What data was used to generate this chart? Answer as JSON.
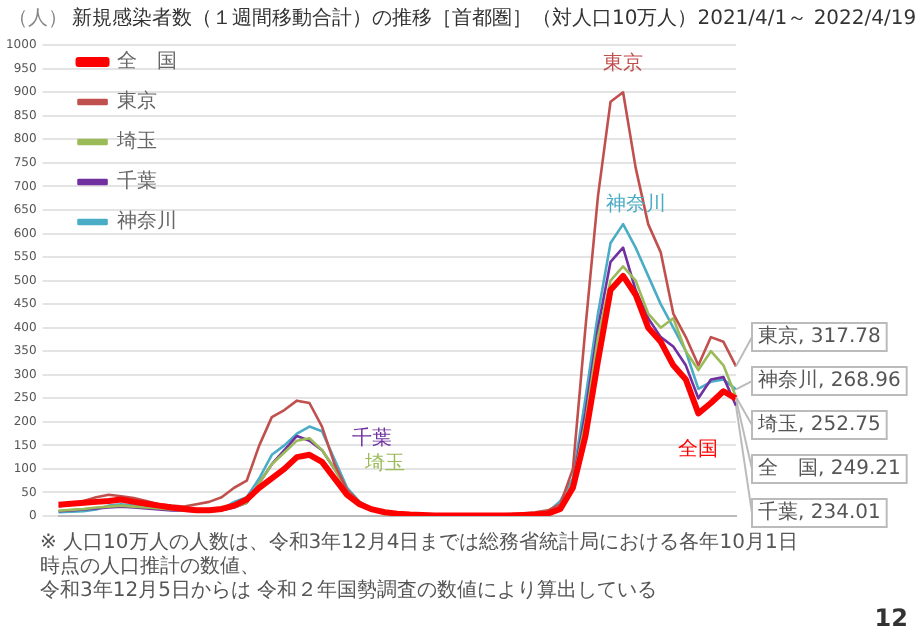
{
  "chart_data": {
    "type": "line",
    "title": "新規感染者数（１週間移動合計）の推移［首都圏］（対人口10万人）2021/4/1～ 2022/4/19",
    "ylabel": "（人）",
    "categories": [
      null,
      null,
      null,
      null,
      null,
      null,
      null,
      null,
      null,
      null,
      null,
      null,
      null,
      null,
      null,
      null,
      null,
      null,
      null,
      null,
      null,
      null,
      null,
      null,
      null,
      null,
      null,
      null,
      null,
      null,
      null,
      null,
      null,
      null,
      null,
      null,
      null,
      null,
      null,
      null,
      null,
      null,
      null,
      null,
      null,
      null,
      null,
      null,
      null,
      null,
      null,
      null,
      null,
      null,
      null
    ],
    "series": [
      {
        "name": "全　国",
        "color": "#ff0000",
        "values": [
          24,
          26,
          28,
          30,
          32,
          35,
          30,
          26,
          22,
          18,
          15,
          12,
          12,
          15,
          22,
          35,
          60,
          80,
          100,
          125,
          130,
          115,
          80,
          45,
          25,
          14,
          8,
          5,
          3,
          2,
          1,
          1,
          1,
          1,
          1,
          1,
          1,
          2,
          3,
          5,
          15,
          60,
          170,
          330,
          480,
          510,
          470,
          400,
          370,
          320,
          290,
          218,
          240,
          265,
          249.21
        ],
        "value_labels": [
          null,
          null,
          null,
          null,
          null,
          null,
          null,
          null,
          null,
          null,
          null,
          null,
          null,
          null,
          null,
          null,
          null,
          null,
          null,
          null,
          null,
          null,
          null,
          null,
          null,
          null,
          null,
          null,
          null,
          null,
          null,
          null,
          null,
          null,
          null,
          null,
          null,
          null,
          null,
          null,
          null,
          null,
          null,
          null,
          null,
          null,
          null,
          null,
          null,
          null,
          null,
          null,
          null,
          null,
          "全　国, 249.21"
        ]
      },
      {
        "name": "東京",
        "color": "#c0504d",
        "values": [
          20,
          25,
          32,
          40,
          45,
          42,
          38,
          32,
          25,
          22,
          20,
          25,
          30,
          40,
          60,
          75,
          150,
          210,
          225,
          245,
          240,
          190,
          110,
          55,
          30,
          15,
          10,
          7,
          5,
          4,
          3,
          3,
          3,
          3,
          3,
          3,
          4,
          5,
          8,
          12,
          25,
          100,
          400,
          680,
          880,
          900,
          740,
          620,
          560,
          430,
          380,
          320,
          380,
          370,
          317.78
        ],
        "value_labels": [
          null,
          null,
          null,
          null,
          null,
          null,
          null,
          null,
          null,
          null,
          null,
          null,
          null,
          null,
          null,
          null,
          null,
          null,
          null,
          null,
          null,
          null,
          null,
          null,
          null,
          null,
          null,
          null,
          null,
          null,
          null,
          null,
          null,
          null,
          null,
          null,
          null,
          null,
          null,
          null,
          null,
          null,
          null,
          null,
          null,
          null,
          null,
          null,
          null,
          null,
          null,
          null,
          null,
          null,
          "東京, 317.78"
        ]
      },
      {
        "name": "埼玉",
        "color": "#9bbb59",
        "values": [
          11,
          13,
          15,
          18,
          20,
          22,
          20,
          18,
          16,
          14,
          12,
          11,
          11,
          13,
          19,
          28,
          70,
          110,
          135,
          160,
          165,
          140,
          100,
          55,
          28,
          14,
          7,
          4,
          3,
          2,
          1,
          1,
          1,
          1,
          1,
          1,
          1,
          2,
          3,
          6,
          18,
          70,
          200,
          380,
          500,
          530,
          500,
          430,
          400,
          420,
          350,
          310,
          350,
          320,
          252.75
        ],
        "value_labels": [
          null,
          null,
          null,
          null,
          null,
          null,
          null,
          null,
          null,
          null,
          null,
          null,
          null,
          null,
          null,
          null,
          null,
          null,
          null,
          null,
          null,
          null,
          null,
          null,
          null,
          null,
          null,
          null,
          null,
          null,
          null,
          null,
          null,
          null,
          null,
          null,
          null,
          null,
          null,
          null,
          null,
          null,
          null,
          null,
          null,
          null,
          null,
          null,
          null,
          null,
          null,
          null,
          null,
          null,
          "埼玉, 252.75"
        ]
      },
      {
        "name": "千葉",
        "color": "#7030a0",
        "values": [
          10,
          12,
          14,
          16,
          18,
          20,
          18,
          16,
          14,
          12,
          11,
          10,
          10,
          12,
          18,
          28,
          70,
          110,
          140,
          170,
          160,
          140,
          100,
          55,
          28,
          14,
          7,
          4,
          3,
          2,
          1,
          1,
          1,
          1,
          1,
          1,
          1,
          2,
          3,
          6,
          18,
          70,
          220,
          400,
          540,
          570,
          480,
          420,
          380,
          360,
          320,
          250,
          290,
          295,
          234.01
        ],
        "value_labels": [
          null,
          null,
          null,
          null,
          null,
          null,
          null,
          null,
          null,
          null,
          null,
          null,
          null,
          null,
          null,
          null,
          null,
          null,
          null,
          null,
          null,
          null,
          null,
          null,
          null,
          null,
          null,
          null,
          null,
          null,
          null,
          null,
          null,
          null,
          null,
          null,
          null,
          null,
          null,
          null,
          null,
          null,
          null,
          null,
          null,
          null,
          null,
          null,
          null,
          null,
          null,
          null,
          null,
          null,
          "千葉, 234.01"
        ]
      },
      {
        "name": "神奈川",
        "color": "#4bacc6",
        "values": [
          8,
          9,
          10,
          14,
          22,
          25,
          22,
          20,
          18,
          15,
          13,
          12,
          12,
          14,
          30,
          40,
          80,
          130,
          150,
          175,
          190,
          180,
          120,
          60,
          30,
          15,
          8,
          5,
          3,
          2,
          1,
          1,
          1,
          1,
          1,
          1,
          1,
          2,
          4,
          8,
          32,
          80,
          250,
          430,
          580,
          620,
          570,
          510,
          450,
          400,
          350,
          270,
          285,
          290,
          268.96
        ],
        "value_labels": [
          null,
          null,
          null,
          null,
          null,
          null,
          null,
          null,
          null,
          null,
          null,
          null,
          null,
          null,
          null,
          null,
          null,
          null,
          null,
          null,
          null,
          null,
          null,
          null,
          null,
          null,
          null,
          null,
          null,
          null,
          null,
          null,
          null,
          null,
          null,
          null,
          null,
          null,
          null,
          null,
          null,
          null,
          null,
          null,
          null,
          null,
          null,
          null,
          null,
          null,
          null,
          null,
          null,
          null,
          "神奈川, 268.96"
        ]
      }
    ],
    "ylim": [
      0,
      1000
    ],
    "yticks": [
      0,
      50,
      100,
      150,
      200,
      250,
      300,
      350,
      400,
      450,
      500,
      550,
      600,
      650,
      700,
      750,
      800,
      850,
      900,
      950,
      1000
    ],
    "grid": "y",
    "legend": "top left",
    "tick_labels": "y",
    "marker": "none",
    "line_style": "solid",
    "annotations": [
      "東京",
      "神奈川",
      "千葉",
      "埼玉",
      "全国",
      "※ 人口10万人の人数は、令和3年12月4日までは総務省統計局における各年10月1日時点の人口推計の数値、",
      "令和3年12月5日からは 令和２年国勢調査の数値により算出している",
      "12"
    ]
  }
}
